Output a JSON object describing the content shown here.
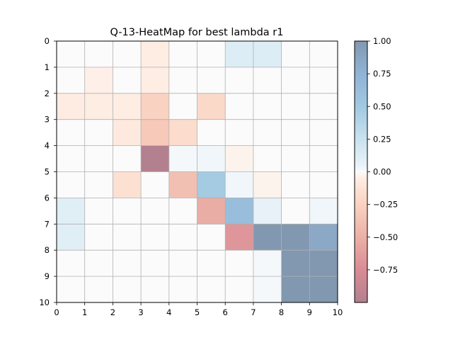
{
  "chart_data": {
    "type": "heatmap",
    "title": "Q-13-HeatMap for best lambda r1",
    "xlabel": "",
    "ylabel": "",
    "x_ticks": [
      "0",
      "1",
      "2",
      "3",
      "4",
      "5",
      "6",
      "7",
      "8",
      "9",
      "10"
    ],
    "y_ticks": [
      "0",
      "1",
      "2",
      "3",
      "4",
      "5",
      "6",
      "7",
      "8",
      "9",
      "10"
    ],
    "xlim": [
      0,
      10
    ],
    "ylim": [
      0,
      10
    ],
    "grid": true,
    "colormap": "RdBu",
    "alpha": 0.5,
    "colorbar": {
      "vmin": -1,
      "vmax": 1,
      "ticks": [
        1.0,
        0.75,
        0.5,
        0.25,
        0.0,
        -0.25,
        -0.5,
        -0.75
      ],
      "tick_labels": [
        "1.00",
        "0.75",
        "0.50",
        "0.25",
        "0.00",
        "−0.25",
        "−0.50",
        "−0.75"
      ]
    },
    "matrix": [
      [
        0.0,
        0.0,
        0.0,
        -0.05,
        0.0,
        0.0,
        0.12,
        0.12,
        0.0,
        0.0
      ],
      [
        0.0,
        -0.04,
        0.0,
        -0.05,
        0.0,
        0.0,
        0.0,
        0.0,
        0.0,
        0.0
      ],
      [
        -0.06,
        -0.05,
        -0.05,
        -0.25,
        0.0,
        -0.2,
        0.0,
        0.0,
        0.0,
        0.0
      ],
      [
        0.0,
        0.0,
        -0.08,
        -0.32,
        -0.18,
        0.0,
        0.0,
        0.0,
        0.0,
        0.0
      ],
      [
        0.0,
        0.0,
        0.0,
        -1.0,
        0.02,
        0.03,
        -0.03,
        0.0,
        0.0,
        0.0
      ],
      [
        0.0,
        0.0,
        -0.15,
        0.0,
        -0.38,
        0.48,
        0.03,
        -0.03,
        0.0,
        0.0
      ],
      [
        0.1,
        0.0,
        0.0,
        0.0,
        0.0,
        -0.52,
        0.62,
        0.06,
        0.0,
        0.03
      ],
      [
        0.1,
        0.0,
        0.0,
        0.0,
        0.0,
        0.0,
        -0.68,
        1.0,
        1.0,
        0.85
      ],
      [
        0.0,
        0.0,
        0.0,
        0.0,
        0.0,
        0.0,
        0.0,
        0.02,
        1.0,
        1.0
      ],
      [
        0.0,
        0.0,
        0.0,
        0.0,
        0.0,
        0.0,
        0.0,
        0.02,
        1.0,
        1.0
      ]
    ]
  }
}
